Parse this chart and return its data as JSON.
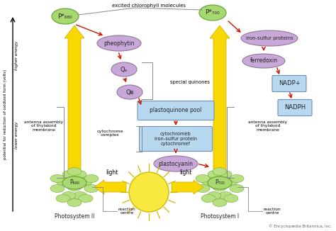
{
  "bg_color": "#ffffff",
  "purple_fc": "#c8a8d8",
  "purple_ec": "#907898",
  "blue_fc": "#b8d8f0",
  "blue_ec": "#7090b8",
  "green_fc": "#a8d870",
  "green_ec": "#60a030",
  "cluster_fc": "#b8e080",
  "cluster_ec": "#70a840",
  "yellow_fc": "#f8d800",
  "yellow_ec": "#c8a800",
  "red_col": "#cc1800",
  "gray_col": "#888888",
  "yaxis_label": "potential for reduction of oxidized form (volts)",
  "higher_energy": "higher energy",
  "lower_energy": "lower energy",
  "excited_label": "excited chlorophyll molecules",
  "special_quinones": "special quinones",
  "cytochrome_complex": "cytochrome\ncomplex",
  "antenna_left": "antenna assembly\nof thylakoid\nmembrane",
  "antenna_right": "antenna assembly\nof thylakoid\nmembrane",
  "light_label": "light",
  "copyright": "© Encyclopædia Britannica, Inc.",
  "ps2_label": "Photosystem II",
  "ps1_label": "Photosystem I",
  "reaction_centre": "reaction\ncentre",
  "p680_star": "P*₆₈₀",
  "p700_star": "P*₇₀₀",
  "p680": "P₆₈₀",
  "p700": "P₇₀₀",
  "pheophytin": "pheophytin",
  "qa": "Qₐ",
  "qb": "Qв",
  "plastoquinone": "plastoquinone pool",
  "cytochrome_box": "cytochromeb\niron-sulfur protein\ncytochromef",
  "plastocyanin": "plastocyanin",
  "iron_sulfur": "iron-sulfur proteins",
  "ferredoxin": "ferredoxin",
  "nadp_plus": "NADP+",
  "nadph": "NADPH"
}
